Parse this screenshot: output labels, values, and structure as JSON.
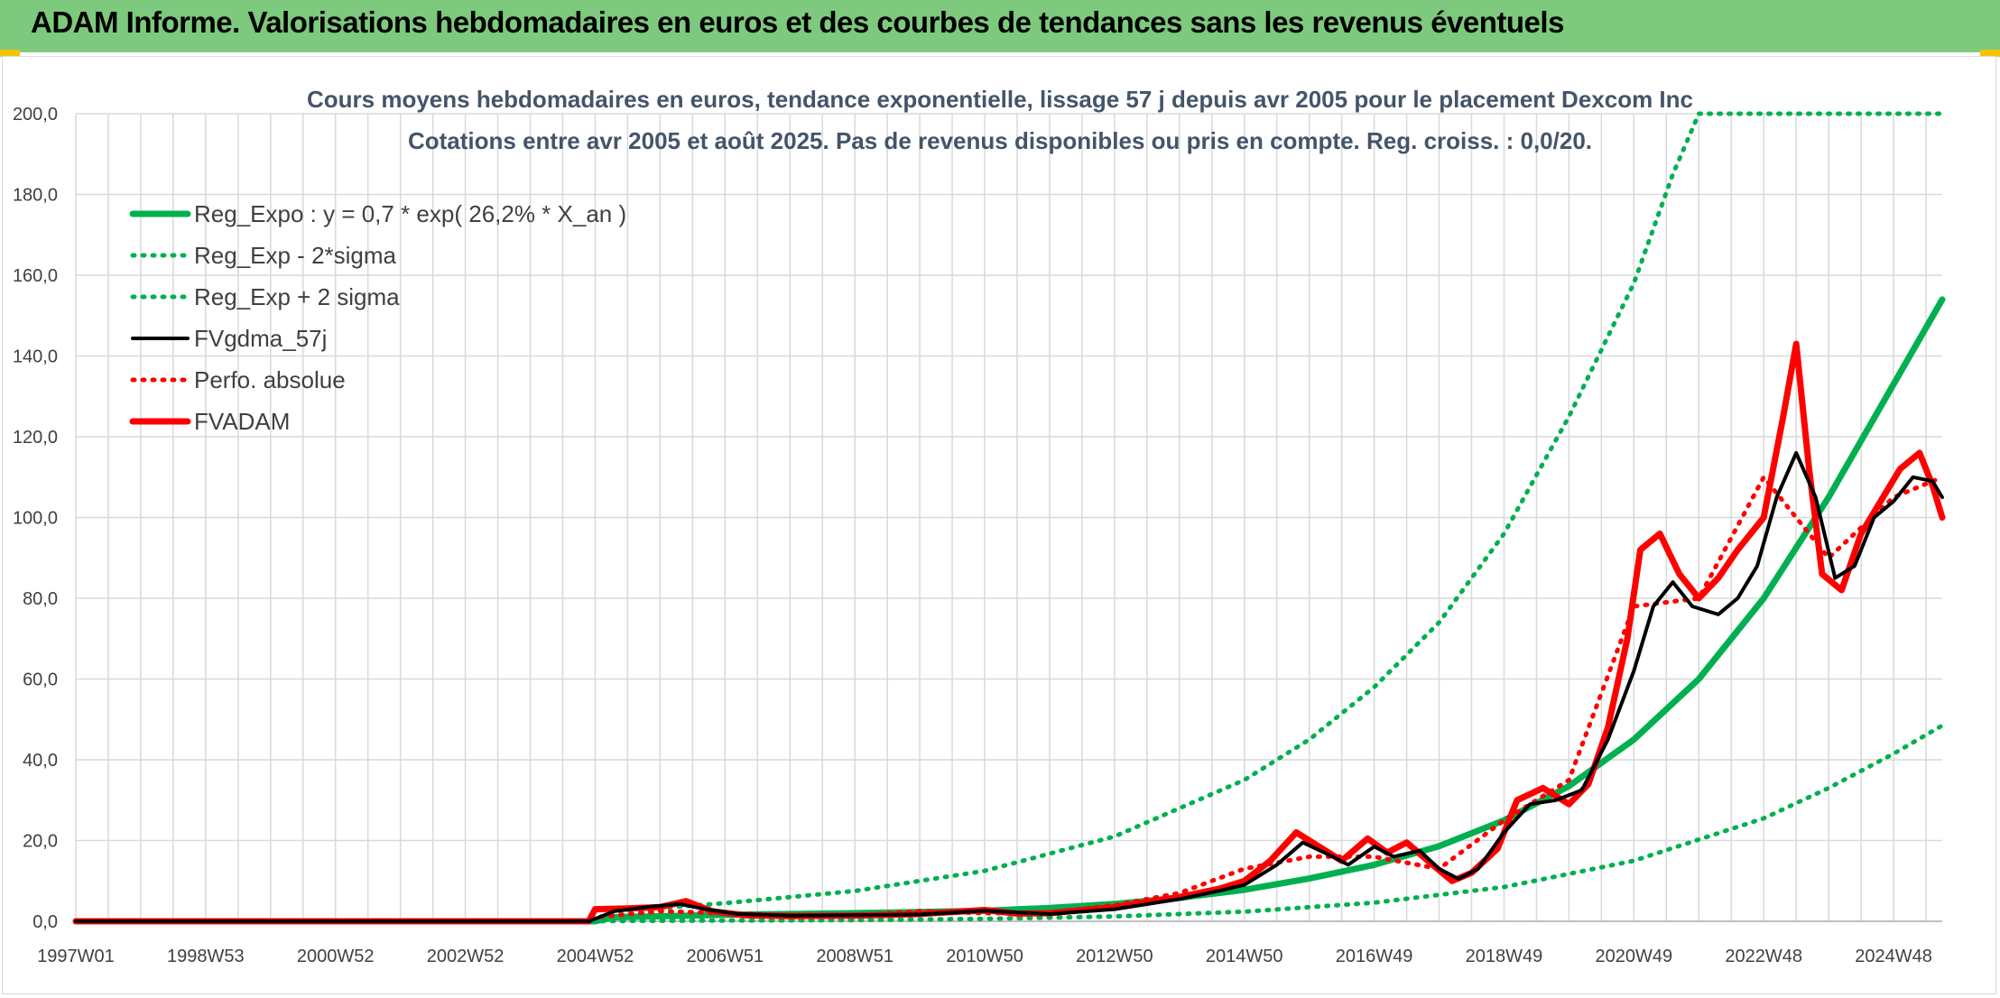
{
  "banner": {
    "title": "ADAM Informe. Valorisations hebdomadaires en euros et des courbes de tendances sans les revenus éventuels"
  },
  "colors": {
    "banner_bg": "#7dc97d",
    "regression": "#00b050",
    "smoothed": "#000000",
    "perfo": "#ff0000",
    "fvadam": "#ff0000",
    "grid": "#d9d9d9"
  },
  "chart_data": {
    "type": "line",
    "title": "Cours moyens hebdomadaires en euros, tendance exponentielle, lissage 57 j depuis avr 2005 pour le placement Dexcom Inc",
    "subtitle": "Cotations entre avr 2005 et août 2025. Pas de revenus disponibles ou pris en compte. Reg. croiss. : 0,0/20.",
    "xlabel": "",
    "ylabel": "",
    "xlim": [
      1997.0,
      2025.75
    ],
    "ylim": [
      0,
      200
    ],
    "y_ticks": [
      "0,0",
      "20,0",
      "40,0",
      "60,0",
      "80,0",
      "100,0",
      "120,0",
      "140,0",
      "160,0",
      "180,0",
      "200,0"
    ],
    "x_ticks": [
      {
        "label": "1997W01",
        "t": 1997.0
      },
      {
        "label": "1998W53",
        "t": 1999.0
      },
      {
        "label": "2000W52",
        "t": 2001.0
      },
      {
        "label": "2002W52",
        "t": 2003.0
      },
      {
        "label": "2004W52",
        "t": 2005.0
      },
      {
        "label": "2006W51",
        "t": 2007.0
      },
      {
        "label": "2008W51",
        "t": 2009.0
      },
      {
        "label": "2010W50",
        "t": 2011.0
      },
      {
        "label": "2012W50",
        "t": 2013.0
      },
      {
        "label": "2014W50",
        "t": 2015.0
      },
      {
        "label": "2016W49",
        "t": 2017.0
      },
      {
        "label": "2018W49",
        "t": 2019.0
      },
      {
        "label": "2020W49",
        "t": 2021.0
      },
      {
        "label": "2022W48",
        "t": 2023.0
      },
      {
        "label": "2024W48",
        "t": 2025.0
      }
    ],
    "grid": true,
    "legend_position": "top-left",
    "series": [
      {
        "name": "Reg_Expo : y = 0,7 * exp( 26,2% *  X_an )",
        "style": "solid-thick",
        "color": "#00b050",
        "points": [
          [
            1997.0,
            0.0
          ],
          [
            2005.0,
            0.0
          ],
          [
            2005.3,
            1.0
          ],
          [
            2007,
            1.6
          ],
          [
            2009,
            2.0
          ],
          [
            2011,
            2.6
          ],
          [
            2012,
            3.3
          ],
          [
            2013,
            4.3
          ],
          [
            2014,
            5.8
          ],
          [
            2015,
            7.8
          ],
          [
            2016,
            10.6
          ],
          [
            2017,
            14.0
          ],
          [
            2018,
            18.6
          ],
          [
            2019,
            25.0
          ],
          [
            2020,
            33.5
          ],
          [
            2021,
            45.0
          ],
          [
            2022,
            60.0
          ],
          [
            2023,
            80.0
          ],
          [
            2024,
            105.0
          ],
          [
            2025,
            133.0
          ],
          [
            2025.75,
            154.0
          ]
        ]
      },
      {
        "name": "Reg_Exp - 2*sigma",
        "style": "dotted",
        "color": "#00b050",
        "points": [
          [
            1997.0,
            0.0
          ],
          [
            2005.0,
            0.0
          ],
          [
            2005.3,
            0.1
          ],
          [
            2009,
            0.3
          ],
          [
            2011,
            0.6
          ],
          [
            2013,
            1.2
          ],
          [
            2015,
            2.4
          ],
          [
            2017,
            4.6
          ],
          [
            2019,
            8.5
          ],
          [
            2021,
            15.0
          ],
          [
            2023,
            25.5
          ],
          [
            2024,
            33.0
          ],
          [
            2025,
            41.5
          ],
          [
            2025.75,
            48.5
          ]
        ]
      },
      {
        "name": "Reg_Exp + 2 sigma",
        "style": "dotted",
        "color": "#00b050",
        "points": [
          [
            1997.0,
            0.0
          ],
          [
            2005.0,
            0.0
          ],
          [
            2005.3,
            2.5
          ],
          [
            2007,
            4.5
          ],
          [
            2009,
            7.5
          ],
          [
            2011,
            12.5
          ],
          [
            2013,
            21.0
          ],
          [
            2015,
            35.0
          ],
          [
            2016,
            45.0
          ],
          [
            2017,
            58.0
          ],
          [
            2018,
            74.0
          ],
          [
            2019,
            96.0
          ],
          [
            2020,
            125.0
          ],
          [
            2021,
            158.0
          ],
          [
            2021.6,
            185.0
          ],
          [
            2022.0,
            200.0
          ],
          [
            2025.75,
            200.0
          ]
        ]
      },
      {
        "name": "FVgdma_57j",
        "style": "solid",
        "color": "#000000",
        "points": [
          [
            1997.0,
            0.0
          ],
          [
            2004.9,
            0.0
          ],
          [
            2005.3,
            2.5
          ],
          [
            2005.8,
            3.5
          ],
          [
            2006.3,
            4.3
          ],
          [
            2006.7,
            3.0
          ],
          [
            2007.2,
            1.8
          ],
          [
            2008,
            1.4
          ],
          [
            2009,
            1.5
          ],
          [
            2010,
            1.7
          ],
          [
            2011,
            2.6
          ],
          [
            2011.5,
            2.2
          ],
          [
            2012,
            1.8
          ],
          [
            2013,
            3.0
          ],
          [
            2014,
            5.5
          ],
          [
            2014.6,
            7.5
          ],
          [
            2015,
            9.0
          ],
          [
            2015.5,
            14.0
          ],
          [
            2015.9,
            19.5
          ],
          [
            2016.3,
            16.5
          ],
          [
            2016.6,
            14.0
          ],
          [
            2017,
            18.5
          ],
          [
            2017.3,
            16.0
          ],
          [
            2017.7,
            17.5
          ],
          [
            2018,
            13.0
          ],
          [
            2018.3,
            10.5
          ],
          [
            2018.6,
            13.0
          ],
          [
            2019,
            22.0
          ],
          [
            2019.4,
            29.0
          ],
          [
            2019.8,
            30.0
          ],
          [
            2020.2,
            32.5
          ],
          [
            2020.6,
            45.0
          ],
          [
            2021,
            62.0
          ],
          [
            2021.3,
            78.0
          ],
          [
            2021.6,
            84.0
          ],
          [
            2021.9,
            78.0
          ],
          [
            2022.3,
            76.0
          ],
          [
            2022.6,
            80.0
          ],
          [
            2022.9,
            88.0
          ],
          [
            2023.2,
            105.0
          ],
          [
            2023.5,
            116.0
          ],
          [
            2023.8,
            105.0
          ],
          [
            2024.1,
            85.0
          ],
          [
            2024.4,
            88.0
          ],
          [
            2024.7,
            100.0
          ],
          [
            2025.0,
            104.0
          ],
          [
            2025.3,
            110.0
          ],
          [
            2025.6,
            109.0
          ],
          [
            2025.75,
            105.0
          ]
        ]
      },
      {
        "name": "Perfo. absolue",
        "style": "dotted",
        "color": "#ff0000",
        "points": [
          [
            1997.0,
            0.0
          ],
          [
            2004.9,
            0.0
          ],
          [
            2005.0,
            1.0
          ],
          [
            2006.0,
            2.5
          ],
          [
            2007.0,
            2.0
          ],
          [
            2008.0,
            1.5
          ],
          [
            2009.0,
            1.5
          ],
          [
            2010.0,
            2.5
          ],
          [
            2011.0,
            2.0
          ],
          [
            2012.0,
            2.2
          ],
          [
            2013.0,
            4.0
          ],
          [
            2014.0,
            7.0
          ],
          [
            2015.0,
            13.0
          ],
          [
            2016.0,
            16.0
          ],
          [
            2017.0,
            16.0
          ],
          [
            2018.0,
            13.0
          ],
          [
            2019.0,
            25.0
          ],
          [
            2020.0,
            35.0
          ],
          [
            2021.0,
            78.0
          ],
          [
            2022.0,
            80.0
          ],
          [
            2023.0,
            110.0
          ],
          [
            2024.0,
            90.0
          ],
          [
            2025.0,
            105.0
          ],
          [
            2025.75,
            110.0
          ]
        ]
      },
      {
        "name": "FVADAM",
        "style": "solid-thick",
        "color": "#ff0000",
        "points": [
          [
            1997.0,
            0.0
          ],
          [
            2004.9,
            0.0
          ],
          [
            2005.0,
            3.0
          ],
          [
            2005.5,
            3.2
          ],
          [
            2006.0,
            3.5
          ],
          [
            2006.4,
            5.0
          ],
          [
            2006.8,
            2.5
          ],
          [
            2007.3,
            1.5
          ],
          [
            2008,
            1.3
          ],
          [
            2009,
            1.4
          ],
          [
            2010,
            1.8
          ],
          [
            2011,
            2.8
          ],
          [
            2011.5,
            1.9
          ],
          [
            2012,
            2.0
          ],
          [
            2013,
            3.5
          ],
          [
            2014,
            6.0
          ],
          [
            2014.6,
            8.0
          ],
          [
            2015,
            10.0
          ],
          [
            2015.4,
            15.0
          ],
          [
            2015.8,
            22.0
          ],
          [
            2016.1,
            19.0
          ],
          [
            2016.5,
            15.0
          ],
          [
            2016.9,
            20.5
          ],
          [
            2017.2,
            17.0
          ],
          [
            2017.5,
            19.5
          ],
          [
            2017.9,
            14.0
          ],
          [
            2018.2,
            10.0
          ],
          [
            2018.5,
            12.0
          ],
          [
            2018.9,
            18.0
          ],
          [
            2019.2,
            30.0
          ],
          [
            2019.6,
            33.0
          ],
          [
            2020.0,
            29.0
          ],
          [
            2020.3,
            34.0
          ],
          [
            2020.6,
            48.0
          ],
          [
            2020.9,
            70.0
          ],
          [
            2021.1,
            92.0
          ],
          [
            2021.4,
            96.0
          ],
          [
            2021.7,
            86.0
          ],
          [
            2022.0,
            80.0
          ],
          [
            2022.3,
            85.0
          ],
          [
            2022.6,
            92.0
          ],
          [
            2023.0,
            100.0
          ],
          [
            2023.3,
            125.0
          ],
          [
            2023.5,
            143.0
          ],
          [
            2023.7,
            112.0
          ],
          [
            2023.9,
            86.0
          ],
          [
            2024.2,
            82.0
          ],
          [
            2024.5,
            96.0
          ],
          [
            2024.8,
            104.0
          ],
          [
            2025.1,
            112.0
          ],
          [
            2025.4,
            116.0
          ],
          [
            2025.6,
            108.0
          ],
          [
            2025.75,
            100.0
          ]
        ]
      }
    ]
  }
}
